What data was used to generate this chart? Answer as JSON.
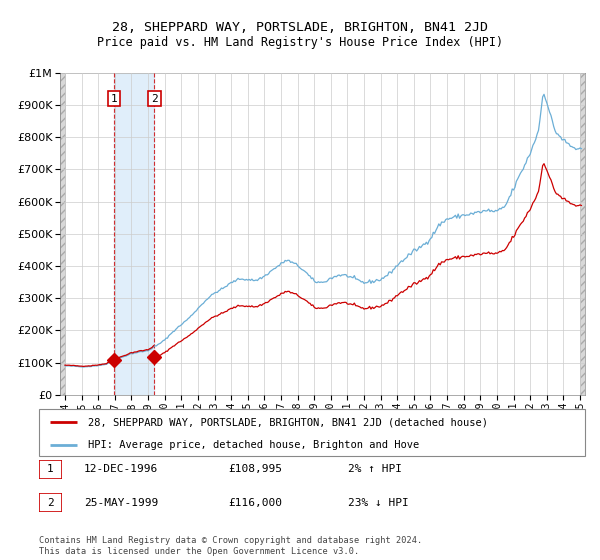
{
  "title": "28, SHEPPARD WAY, PORTSLADE, BRIGHTON, BN41 2JD",
  "subtitle": "Price paid vs. HM Land Registry's House Price Index (HPI)",
  "legend_line1": "28, SHEPPARD WAY, PORTSLADE, BRIGHTON, BN41 2JD (detached house)",
  "legend_line2": "HPI: Average price, detached house, Brighton and Hove",
  "transaction1_date": "12-DEC-1996",
  "transaction1_price": "£108,995",
  "transaction1_hpi": "2% ↑ HPI",
  "transaction2_date": "25-MAY-1999",
  "transaction2_price": "£116,000",
  "transaction2_hpi": "23% ↓ HPI",
  "footnote": "Contains HM Land Registry data © Crown copyright and database right 2024.\nThis data is licensed under the Open Government Licence v3.0.",
  "hpi_color": "#6baed6",
  "price_color": "#cc0000",
  "transaction1_x": 1996.96,
  "transaction2_x": 1999.38,
  "transaction1_price_val": 108995,
  "transaction2_price_val": 116000,
  "xlim": [
    1993.7,
    2025.3
  ],
  "ylim": [
    0,
    1000000
  ],
  "hatch_left_end": 1994.0,
  "hatch_right_start": 2025.0
}
